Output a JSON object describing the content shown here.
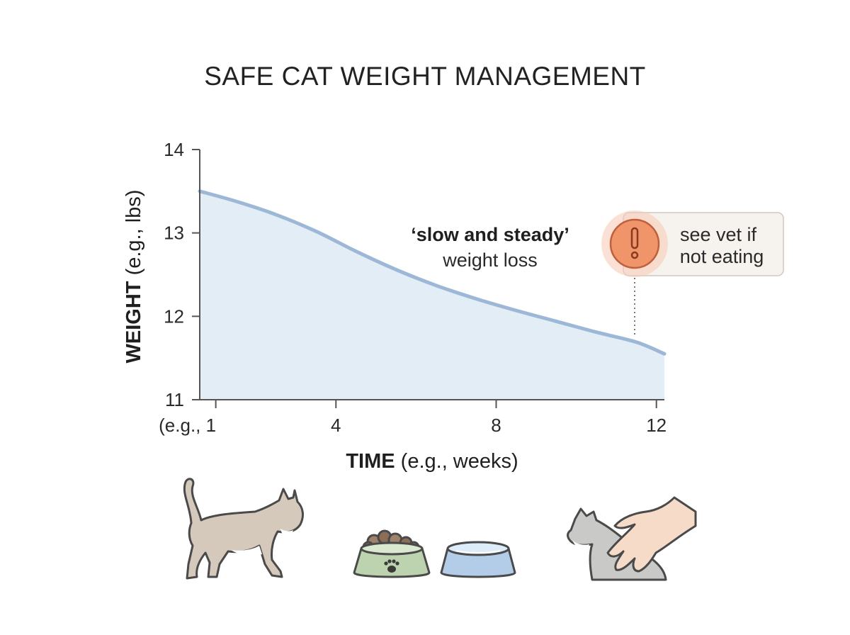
{
  "chart_data": {
    "type": "area",
    "title": "SAFE CAT WEIGHT MANAGEMENT",
    "xlabel_bold": "TIME",
    "xlabel_rest": " (e.g., weeks)",
    "ylabel_bold": "WEIGHT",
    "ylabel_rest": " (e.g., lbs)",
    "x_tick_labels": [
      {
        "x": 1,
        "label": "(e.g., 1"
      },
      {
        "x": 4,
        "label": "4"
      },
      {
        "x": 8,
        "label": "8"
      },
      {
        "x": 12,
        "label": "12"
      }
    ],
    "y_ticks": [
      11,
      12,
      13,
      14
    ],
    "xlim": [
      0.6,
      12.2
    ],
    "ylim": [
      11,
      14
    ],
    "series": [
      {
        "x": [
          0.6,
          1.5,
          2.5,
          3.5,
          4.5,
          5.5,
          6.5,
          7.5,
          8.5,
          9.5,
          10.5,
          11.5,
          12.2
        ],
        "values": [
          13.5,
          13.38,
          13.22,
          13.02,
          12.78,
          12.56,
          12.37,
          12.21,
          12.07,
          11.94,
          11.81,
          11.69,
          11.55
        ]
      }
    ],
    "colors": {
      "line": "#9db8d6",
      "fill": "#e3edf6",
      "axis": "#555555"
    },
    "annotations": {
      "trend_bold": "‘slow and steady’",
      "trend_text": "weight loss",
      "warning_line1": "see vet if",
      "warning_line2": "not eating",
      "warning_icon": "exclamation-icon",
      "warning_color": "#f0946a"
    },
    "grid": false,
    "legend": "none"
  },
  "illustrations": {
    "left": "walking-cat-illustration",
    "middle_food": "food-bowl-with-paw-icon",
    "middle_water": "water-bowl-icon",
    "right": "hand-petting-cat-illustration"
  }
}
